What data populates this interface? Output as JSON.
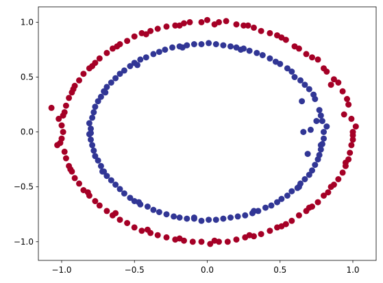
{
  "chart_data": {
    "type": "scatter",
    "title": "",
    "xlabel": "",
    "ylabel": "",
    "xlim": [
      -1.16,
      1.16
    ],
    "ylim": [
      -1.17,
      1.14
    ],
    "grid": false,
    "legend": "none",
    "x_ticks": [
      -1.0,
      -0.5,
      0.0,
      0.5,
      1.0
    ],
    "x_tick_labels": [
      "−1.0",
      "−0.5",
      "0.0",
      "0.5",
      "1.0"
    ],
    "y_ticks": [
      -1.0,
      -0.5,
      0.0,
      0.5,
      1.0
    ],
    "y_tick_labels": [
      "−1.0",
      "−0.5",
      "0.0",
      "0.5",
      "1.0"
    ],
    "series": [
      {
        "color": "#a50026",
        "points": [
          [
            1.0,
            0.0
          ],
          [
            0.99,
            0.12
          ],
          [
            0.97,
            0.25
          ],
          [
            0.93,
            0.37
          ],
          [
            0.87,
            0.48
          ],
          [
            0.8,
            0.58
          ],
          [
            0.72,
            0.68
          ],
          [
            0.63,
            0.76
          ],
          [
            0.54,
            0.84
          ],
          [
            0.43,
            0.9
          ],
          [
            0.32,
            0.95
          ],
          [
            0.2,
            0.98
          ],
          [
            0.08,
            1.0
          ],
          [
            -0.04,
            1.0
          ],
          [
            -0.16,
            0.99
          ],
          [
            -0.28,
            0.96
          ],
          [
            -0.39,
            0.92
          ],
          [
            -0.5,
            0.87
          ],
          [
            -0.6,
            0.8
          ],
          [
            -0.69,
            0.72
          ],
          [
            -0.77,
            0.63
          ],
          [
            -0.85,
            0.53
          ],
          [
            -0.91,
            0.42
          ],
          [
            -0.95,
            0.31
          ],
          [
            -0.98,
            0.18
          ],
          [
            -1.0,
            0.06
          ],
          [
            -1.0,
            -0.06
          ],
          [
            -0.98,
            -0.18
          ],
          [
            -0.95,
            -0.31
          ],
          [
            -0.91,
            -0.42
          ],
          [
            -0.85,
            -0.53
          ],
          [
            -0.77,
            -0.63
          ],
          [
            -0.69,
            -0.72
          ],
          [
            -0.6,
            -0.8
          ],
          [
            -0.5,
            -0.87
          ],
          [
            -0.39,
            -0.92
          ],
          [
            -0.28,
            -0.96
          ],
          [
            -0.16,
            -0.99
          ],
          [
            -0.04,
            -1.0
          ],
          [
            0.08,
            -1.0
          ],
          [
            0.2,
            -0.98
          ],
          [
            0.32,
            -0.95
          ],
          [
            0.43,
            -0.9
          ],
          [
            0.54,
            -0.84
          ],
          [
            0.63,
            -0.76
          ],
          [
            0.72,
            -0.68
          ],
          [
            0.8,
            -0.58
          ],
          [
            0.87,
            -0.48
          ],
          [
            0.93,
            -0.37
          ],
          [
            0.97,
            -0.25
          ],
          [
            0.99,
            -0.12
          ],
          [
            1.02,
            0.05
          ],
          [
            0.96,
            0.3
          ],
          [
            0.9,
            0.45
          ],
          [
            0.82,
            0.55
          ],
          [
            0.76,
            0.66
          ],
          [
            0.6,
            0.78
          ],
          [
            0.48,
            0.88
          ],
          [
            0.37,
            0.92
          ],
          [
            0.25,
            0.97
          ],
          [
            0.13,
            1.01
          ],
          [
            0.0,
            1.02
          ],
          [
            -0.12,
            1.0
          ],
          [
            -0.22,
            0.97
          ],
          [
            -0.34,
            0.94
          ],
          [
            -0.45,
            0.9
          ],
          [
            -0.55,
            0.83
          ],
          [
            -0.65,
            0.76
          ],
          [
            -0.74,
            0.67
          ],
          [
            -0.81,
            0.58
          ],
          [
            -0.88,
            0.47
          ],
          [
            -0.93,
            0.36
          ],
          [
            -0.97,
            0.24
          ],
          [
            -1.02,
            0.12
          ],
          [
            -1.07,
            0.22
          ],
          [
            -0.99,
            0.0
          ],
          [
            -1.03,
            -0.12
          ],
          [
            -0.97,
            -0.24
          ],
          [
            -0.93,
            -0.36
          ],
          [
            -0.88,
            -0.47
          ],
          [
            -0.81,
            -0.58
          ],
          [
            -0.74,
            -0.67
          ],
          [
            -0.65,
            -0.76
          ],
          [
            -0.55,
            -0.83
          ],
          [
            -0.45,
            -0.9
          ],
          [
            -0.34,
            -0.94
          ],
          [
            -0.22,
            -0.98
          ],
          [
            -0.1,
            -1.0
          ],
          [
            0.02,
            -1.02
          ],
          [
            0.14,
            -1.0
          ],
          [
            0.26,
            -0.96
          ],
          [
            0.37,
            -0.93
          ],
          [
            0.48,
            -0.87
          ],
          [
            0.58,
            -0.81
          ],
          [
            0.68,
            -0.72
          ],
          [
            0.76,
            -0.64
          ],
          [
            0.83,
            -0.55
          ],
          [
            0.9,
            -0.43
          ],
          [
            0.95,
            -0.31
          ],
          [
            0.98,
            -0.19
          ],
          [
            1.0,
            -0.07
          ],
          [
            0.94,
            0.16
          ],
          [
            0.85,
            0.43
          ],
          [
            0.68,
            0.71
          ],
          [
            0.51,
            0.86
          ],
          [
            0.28,
            0.97
          ],
          [
            0.05,
            0.98
          ],
          [
            -0.19,
            0.97
          ],
          [
            -0.42,
            0.89
          ],
          [
            -0.62,
            0.78
          ],
          [
            -0.79,
            0.6
          ],
          [
            -0.92,
            0.39
          ],
          [
            -0.99,
            0.15
          ],
          [
            -1.01,
            -0.1
          ],
          [
            -0.94,
            -0.34
          ],
          [
            -0.82,
            -0.55
          ],
          [
            -0.63,
            -0.74
          ],
          [
            -0.41,
            -0.89
          ],
          [
            -0.19,
            -0.97
          ],
          [
            0.05,
            -0.99
          ],
          [
            0.29,
            -0.94
          ],
          [
            0.51,
            -0.86
          ],
          [
            0.7,
            -0.69
          ],
          [
            0.85,
            -0.5
          ],
          [
            0.95,
            -0.28
          ],
          [
            1.0,
            -0.03
          ]
        ]
      },
      {
        "color": "#313695",
        "points": [
          [
            0.8,
            0.0
          ],
          [
            0.79,
            0.1
          ],
          [
            0.77,
            0.2
          ],
          [
            0.74,
            0.3
          ],
          [
            0.7,
            0.39
          ],
          [
            0.64,
            0.47
          ],
          [
            0.58,
            0.55
          ],
          [
            0.5,
            0.62
          ],
          [
            0.43,
            0.67
          ],
          [
            0.34,
            0.72
          ],
          [
            0.25,
            0.76
          ],
          [
            0.16,
            0.78
          ],
          [
            0.06,
            0.8
          ],
          [
            -0.04,
            0.8
          ],
          [
            -0.14,
            0.79
          ],
          [
            -0.24,
            0.77
          ],
          [
            -0.33,
            0.73
          ],
          [
            -0.42,
            0.68
          ],
          [
            -0.5,
            0.63
          ],
          [
            -0.57,
            0.56
          ],
          [
            -0.63,
            0.49
          ],
          [
            -0.69,
            0.41
          ],
          [
            -0.73,
            0.32
          ],
          [
            -0.77,
            0.23
          ],
          [
            -0.79,
            0.13
          ],
          [
            -0.8,
            0.03
          ],
          [
            -0.8,
            -0.07
          ],
          [
            -0.78,
            -0.17
          ],
          [
            -0.75,
            -0.26
          ],
          [
            -0.71,
            -0.36
          ],
          [
            -0.66,
            -0.44
          ],
          [
            -0.6,
            -0.52
          ],
          [
            -0.53,
            -0.6
          ],
          [
            -0.46,
            -0.66
          ],
          [
            -0.37,
            -0.71
          ],
          [
            -0.28,
            -0.75
          ],
          [
            -0.19,
            -0.78
          ],
          [
            -0.09,
            -0.79
          ],
          [
            0.01,
            -0.8
          ],
          [
            0.11,
            -0.79
          ],
          [
            0.21,
            -0.77
          ],
          [
            0.31,
            -0.74
          ],
          [
            0.4,
            -0.69
          ],
          [
            0.48,
            -0.64
          ],
          [
            0.55,
            -0.58
          ],
          [
            0.62,
            -0.51
          ],
          [
            0.67,
            -0.43
          ],
          [
            0.72,
            -0.35
          ],
          [
            0.76,
            -0.25
          ],
          [
            0.78,
            -0.16
          ],
          [
            0.8,
            -0.06
          ],
          [
            0.82,
            0.05
          ],
          [
            0.78,
            0.15
          ],
          [
            0.73,
            0.34
          ],
          [
            0.67,
            0.43
          ],
          [
            0.55,
            0.58
          ],
          [
            0.47,
            0.64
          ],
          [
            0.38,
            0.7
          ],
          [
            0.29,
            0.74
          ],
          [
            0.2,
            0.77
          ],
          [
            0.11,
            0.79
          ],
          [
            0.01,
            0.81
          ],
          [
            -0.09,
            0.8
          ],
          [
            -0.19,
            0.78
          ],
          [
            -0.29,
            0.75
          ],
          [
            -0.37,
            0.71
          ],
          [
            -0.46,
            0.66
          ],
          [
            -0.53,
            0.6
          ],
          [
            -0.6,
            0.53
          ],
          [
            -0.66,
            0.45
          ],
          [
            -0.71,
            0.37
          ],
          [
            -0.75,
            0.28
          ],
          [
            -0.78,
            0.18
          ],
          [
            -0.81,
            0.08
          ],
          [
            -0.81,
            -0.02
          ],
          [
            -0.79,
            -0.12
          ],
          [
            -0.77,
            -0.22
          ],
          [
            -0.73,
            -0.31
          ],
          [
            -0.69,
            -0.4
          ],
          [
            -0.63,
            -0.48
          ],
          [
            -0.57,
            -0.56
          ],
          [
            -0.5,
            -0.63
          ],
          [
            -0.41,
            -0.68
          ],
          [
            -0.33,
            -0.73
          ],
          [
            -0.23,
            -0.77
          ],
          [
            -0.14,
            -0.79
          ],
          [
            -0.04,
            -0.81
          ],
          [
            0.06,
            -0.8
          ],
          [
            0.16,
            -0.78
          ],
          [
            0.26,
            -0.76
          ],
          [
            0.35,
            -0.72
          ],
          [
            0.44,
            -0.67
          ],
          [
            0.51,
            -0.61
          ],
          [
            0.58,
            -0.54
          ],
          [
            0.64,
            -0.47
          ],
          [
            0.7,
            -0.39
          ],
          [
            0.74,
            -0.3
          ],
          [
            0.77,
            -0.21
          ],
          [
            0.79,
            -0.11
          ],
          [
            0.71,
            0.02
          ],
          [
            0.75,
            0.1
          ],
          [
            0.6,
            0.5
          ],
          [
            0.23,
            0.75
          ],
          [
            -0.17,
            0.77
          ],
          [
            -0.48,
            0.61
          ],
          [
            -0.7,
            0.36
          ],
          [
            -0.8,
            -0.01
          ],
          [
            -0.72,
            -0.36
          ],
          [
            -0.47,
            -0.64
          ],
          [
            -0.09,
            -0.78
          ],
          [
            0.32,
            -0.72
          ],
          [
            0.63,
            -0.5
          ],
          [
            0.78,
            -0.12
          ],
          [
            0.66,
            0.0
          ],
          [
            0.69,
            -0.2
          ],
          [
            0.65,
            0.28
          ]
        ]
      }
    ]
  }
}
